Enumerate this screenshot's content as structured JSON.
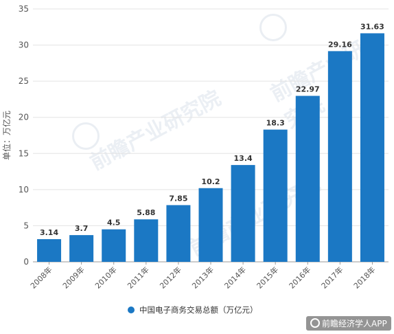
{
  "chart_data": {
    "type": "bar",
    "categories": [
      "2008年",
      "2009年",
      "2010年",
      "2011年",
      "2012年",
      "2013年",
      "2014年",
      "2015年",
      "2016年",
      "2017年",
      "2018年"
    ],
    "values": [
      3.14,
      3.7,
      4.5,
      5.88,
      7.85,
      10.2,
      13.4,
      18.3,
      22.97,
      29.16,
      31.63
    ],
    "data_labels": [
      "3.14",
      "3.7",
      "4.5",
      "5.88",
      "7.85",
      "10.2",
      "13.4",
      "18.3",
      "22.97",
      "29.16",
      "31.63"
    ],
    "series": [
      {
        "name": "中国电子商务交易总额（万亿元）",
        "values": [
          3.14,
          3.7,
          4.5,
          5.88,
          7.85,
          10.2,
          13.4,
          18.3,
          22.97,
          29.16,
          31.63
        ]
      }
    ],
    "ylabel": "单位：万亿元",
    "xlabel": "",
    "title": "",
    "ylim": [
      0,
      35
    ],
    "yticks": [
      0,
      5,
      10,
      15,
      20,
      25,
      30,
      35
    ],
    "grid": true,
    "legend_position": "bottom-center",
    "color": "#1b78c4"
  },
  "watermarks": {
    "brand": "前瞻产业研究院",
    "footer": "前瞻经济学人APP"
  }
}
